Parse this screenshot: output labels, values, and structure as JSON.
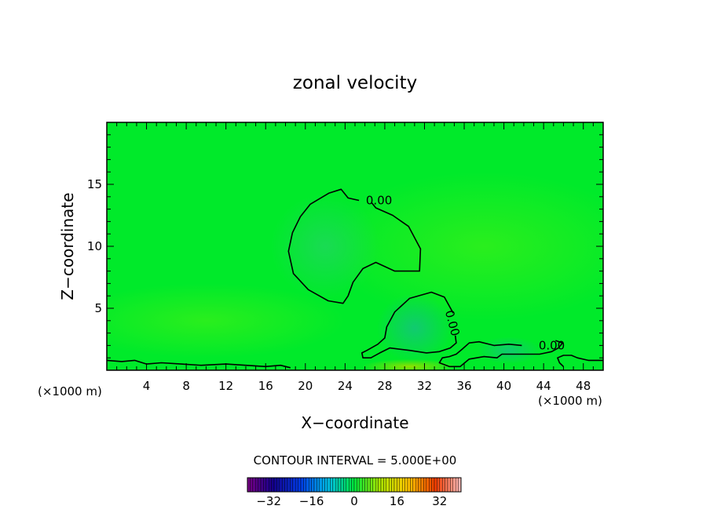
{
  "chart_data": {
    "type": "heatmap",
    "title": "zonal velocity",
    "xlabel": "X−coordinate",
    "ylabel": "Z−coordinate",
    "x_unit_left": "(×1000 m)",
    "x_unit_right": "(×1000 m)",
    "xlim": [
      0,
      50
    ],
    "ylim": [
      0,
      20
    ],
    "x_ticks": [
      {
        "value": 4,
        "label": "4"
      },
      {
        "value": 8,
        "label": "8"
      },
      {
        "value": 12,
        "label": "12"
      },
      {
        "value": 16,
        "label": "16"
      },
      {
        "value": 20,
        "label": "20"
      },
      {
        "value": 24,
        "label": "24"
      },
      {
        "value": 28,
        "label": "28"
      },
      {
        "value": 32,
        "label": "32"
      },
      {
        "value": 36,
        "label": "36"
      },
      {
        "value": 40,
        "label": "40"
      },
      {
        "value": 44,
        "label": "44"
      },
      {
        "value": 48,
        "label": "48"
      }
    ],
    "y_ticks": [
      {
        "value": 5,
        "label": "5"
      },
      {
        "value": 10,
        "label": "10"
      },
      {
        "value": 15,
        "label": "15"
      }
    ],
    "contour_interval_text": "CONTOUR INTERVAL = 5.000E+00",
    "contour_interval": 5,
    "contours": [
      {
        "level": 0,
        "label": "0.00",
        "label_at": [
          26.1,
          13.7
        ],
        "points": [
          [
            25.4,
            13.7
          ],
          [
            24.3,
            13.9
          ],
          [
            23.6,
            14.6
          ],
          [
            22.4,
            14.3
          ],
          [
            20.5,
            13.4
          ],
          [
            19.5,
            12.4
          ],
          [
            18.7,
            11.1
          ],
          [
            18.3,
            9.6
          ],
          [
            18.8,
            7.8
          ],
          [
            20.3,
            6.5
          ],
          [
            22.3,
            5.6
          ],
          [
            23.8,
            5.4
          ],
          [
            24.3,
            6.0
          ],
          [
            24.8,
            7.1
          ],
          [
            25.8,
            8.2
          ],
          [
            27.1,
            8.7
          ],
          [
            29.0,
            8.0
          ],
          [
            31.5,
            8.0
          ],
          [
            31.6,
            9.8
          ],
          [
            30.4,
            11.6
          ],
          [
            28.8,
            12.5
          ],
          [
            27.1,
            13.1
          ],
          [
            26.7,
            13.5
          ]
        ]
      },
      {
        "level": 0,
        "label": "0.00",
        "label_at": [
          34.8,
          3.8
        ],
        "points": [
          [
            34.9,
            4.6
          ],
          [
            34.0,
            5.9
          ],
          [
            32.7,
            6.3
          ],
          [
            30.5,
            5.8
          ],
          [
            29.0,
            4.7
          ],
          [
            28.2,
            3.5
          ],
          [
            28.0,
            2.6
          ],
          [
            27.3,
            2.1
          ],
          [
            26.2,
            1.6
          ],
          [
            25.7,
            1.4
          ],
          [
            25.8,
            1.0
          ],
          [
            26.6,
            1.0
          ],
          [
            27.5,
            1.4
          ],
          [
            28.5,
            1.8
          ],
          [
            30.5,
            1.6
          ],
          [
            32.2,
            1.4
          ],
          [
            33.5,
            1.5
          ],
          [
            34.6,
            1.8
          ],
          [
            35.2,
            2.2
          ],
          [
            35.1,
            2.8
          ]
        ]
      },
      {
        "level": 0,
        "label": "0.00",
        "label_at": [
          43.5,
          2.0
        ],
        "points": [
          [
            41.8,
            2.0
          ],
          [
            40.5,
            2.1
          ],
          [
            39.0,
            2.0
          ],
          [
            37.5,
            2.3
          ],
          [
            36.5,
            2.2
          ],
          [
            35.8,
            1.7
          ],
          [
            35.2,
            1.3
          ],
          [
            34.5,
            1.1
          ],
          [
            33.8,
            1.0
          ],
          [
            33.5,
            0.6
          ],
          [
            34.5,
            0.3
          ],
          [
            35.6,
            0.3
          ],
          [
            36.5,
            0.9
          ],
          [
            38.0,
            1.1
          ],
          [
            39.3,
            1.0
          ],
          [
            39.8,
            1.3
          ],
          [
            41.0,
            1.3
          ],
          [
            42.5,
            1.3
          ],
          [
            43.6,
            1.3
          ],
          [
            44.8,
            1.5
          ],
          [
            45.5,
            1.8
          ],
          [
            45.9,
            2.2
          ],
          [
            45.2,
            2.4
          ]
        ]
      },
      {
        "level": 0,
        "label": "",
        "label_at": null,
        "points": [
          [
            0,
            0.8
          ],
          [
            1.5,
            0.7
          ],
          [
            2.8,
            0.8
          ],
          [
            4.0,
            0.5
          ],
          [
            5.5,
            0.6
          ],
          [
            7.5,
            0.5
          ],
          [
            9.5,
            0.4
          ],
          [
            12.0,
            0.5
          ],
          [
            14.0,
            0.4
          ],
          [
            16.0,
            0.3
          ],
          [
            17.5,
            0.4
          ],
          [
            18.5,
            0.2
          ]
        ]
      },
      {
        "level": 0,
        "label": "",
        "label_at": null,
        "points": [
          [
            46.0,
            0.3
          ],
          [
            45.6,
            0.6
          ],
          [
            45.4,
            1.0
          ],
          [
            46.0,
            1.2
          ],
          [
            46.8,
            1.2
          ],
          [
            47.4,
            1.0
          ],
          [
            48.5,
            0.8
          ],
          [
            50.0,
            0.8
          ]
        ]
      }
    ],
    "field_description_values": {
      "background": 0,
      "upper_blob": -1.5,
      "lower_blob": -3.5,
      "surface_jet": 4
    },
    "colorbar": {
      "range": [
        -40,
        40
      ],
      "ticks": [
        {
          "value": -32,
          "label": "−32"
        },
        {
          "value": -16,
          "label": "−16"
        },
        {
          "value": 0,
          "label": "0"
        },
        {
          "value": 16,
          "label": "16"
        },
        {
          "value": 32,
          "label": "32"
        }
      ]
    },
    "grid": false
  }
}
